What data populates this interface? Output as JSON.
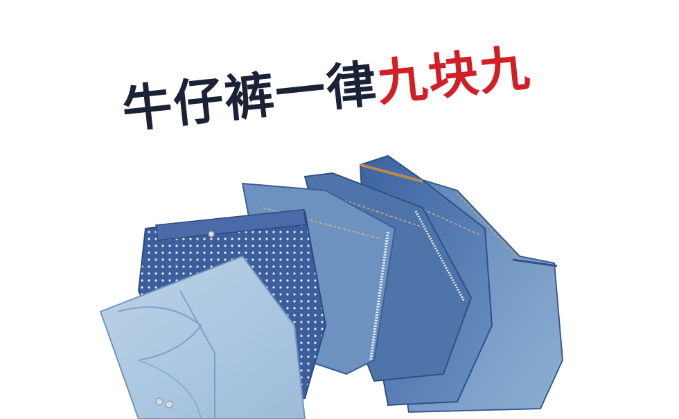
{
  "headline": {
    "part1": "牛仔裤一律",
    "part2": "九块九",
    "color_main": "#1b2236",
    "color_accent": "#d21f26"
  },
  "photo": {
    "subject": "jeans-stack",
    "denim_colors": [
      "#a9c6de",
      "#3f63a0",
      "#6e92bd",
      "#4f74aa",
      "#5a82b5",
      "#7ea0c4"
    ]
  }
}
